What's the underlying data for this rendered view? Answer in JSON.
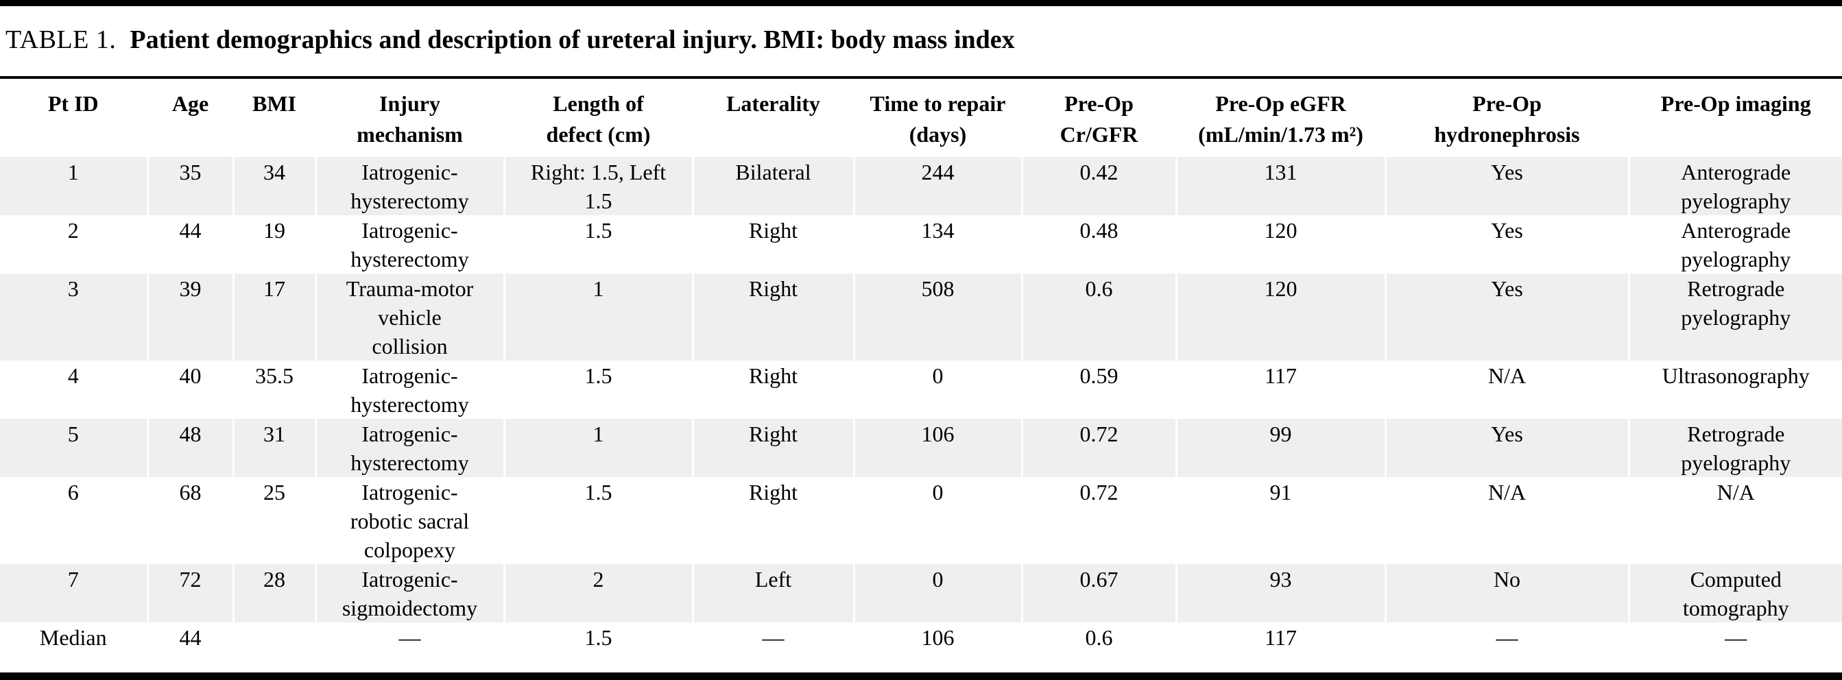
{
  "table": {
    "label": "TABLE 1.",
    "caption": "Patient demographics and description of ureteral injury. BMI: body mass index",
    "columns": [
      "Pt ID",
      "Age",
      "BMI",
      "Injury\nmechanism",
      "Length of\ndefect (cm)",
      "Laterality",
      "Time to repair\n(days)",
      "Pre-Op\nCr/GFR",
      "Pre-Op eGFR\n(mL/min/1.73 m²)",
      "Pre-Op\nhydronephrosis",
      "Pre-Op imaging"
    ],
    "rows": [
      [
        "1",
        "35",
        "34",
        "Iatrogenic-\nhysterectomy",
        "Right: 1.5, Left\n1.5",
        "Bilateral",
        "244",
        "0.42",
        "131",
        "Yes",
        "Anterograde\npyelography"
      ],
      [
        "2",
        "44",
        "19",
        "Iatrogenic-\nhysterectomy",
        "1.5",
        "Right",
        "134",
        "0.48",
        "120",
        "Yes",
        "Anterograde\npyelography"
      ],
      [
        "3",
        "39",
        "17",
        "Trauma-motor\nvehicle\ncollision",
        "1",
        "Right",
        "508",
        "0.6",
        "120",
        "Yes",
        "Retrograde\npyelography"
      ],
      [
        "4",
        "40",
        "35.5",
        "Iatrogenic-\nhysterectomy",
        "1.5",
        "Right",
        "0",
        "0.59",
        "117",
        "N/A",
        "Ultrasonography"
      ],
      [
        "5",
        "48",
        "31",
        "Iatrogenic-\nhysterectomy",
        "1",
        "Right",
        "106",
        "0.72",
        "99",
        "Yes",
        "Retrograde\npyelography"
      ],
      [
        "6",
        "68",
        "25",
        "Iatrogenic-\nrobotic sacral\ncolpopexy",
        "1.5",
        "Right",
        "0",
        "0.72",
        "91",
        "N/A",
        "N/A"
      ],
      [
        "7",
        "72",
        "28",
        "Iatrogenic-\nsigmoidectomy",
        "2",
        "Left",
        "0",
        "0.67",
        "93",
        "No",
        "Computed\ntomography"
      ],
      [
        "Median",
        "44",
        "",
        "—",
        "1.5",
        "—",
        "106",
        "0.6",
        "117",
        "—",
        "—"
      ]
    ],
    "shaded_row_indexes": [
      0,
      2,
      4,
      6
    ],
    "colors": {
      "row_shade": "#efefef",
      "rule": "#000000",
      "text": "#000000"
    }
  }
}
